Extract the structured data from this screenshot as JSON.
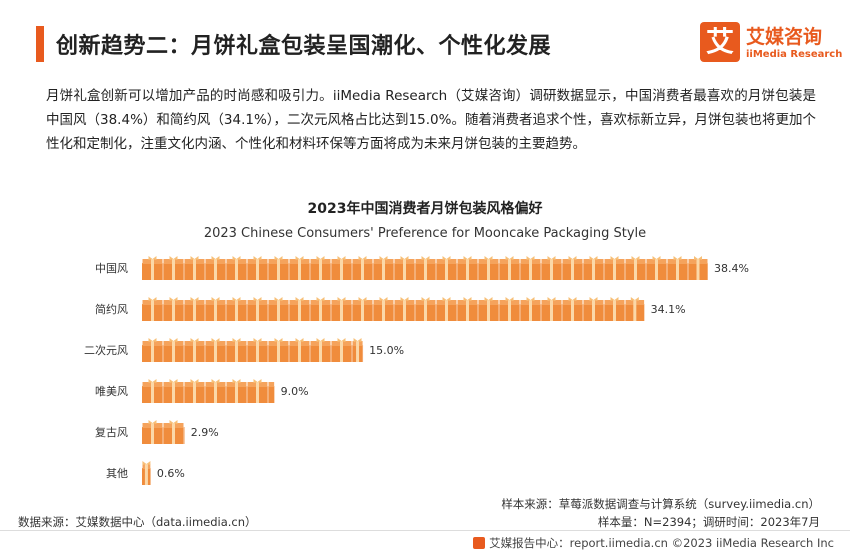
{
  "header": {
    "title": "创新趋势二：月饼礼盒包装呈国潮化、个性化发展",
    "accent_color": "#e85a1e"
  },
  "logo": {
    "mark": "艾",
    "name_cn": "艾媒咨询",
    "name_en": "iiMedia Research"
  },
  "intro_text": "月饼礼盒创新可以增加产品的时尚感和吸引力。iiMedia Research（艾媒咨询）调研数据显示，中国消费者最喜欢的月饼包装是中国风（38.4%）和简约风（34.1%），二次元风格占比达到15.0%。随着消费者追求个性，喜欢标新立异，月饼包装也将更加个性化和定制化，注重文化内涵、个性化和材料环保等方面将成为未来月饼包装的主要趋势。",
  "chart_data": {
    "type": "bar",
    "orientation": "horizontal",
    "title": "2023年中国消费者月饼包装风格偏好",
    "subtitle": "2023 Chinese Consumers' Preference for Mooncake Packaging Style",
    "categories": [
      "中国风",
      "简约风",
      "二次元风",
      "唯美风",
      "复古风",
      "其他"
    ],
    "values": [
      38.4,
      34.1,
      15.0,
      9.0,
      2.9,
      0.6
    ],
    "value_labels": [
      "38.4%",
      "34.1%",
      "15.0%",
      "9.0%",
      "2.9%",
      "0.6%"
    ],
    "unit": "%",
    "bar_color": "#f08c3c",
    "bar_style": "gift-box icons",
    "grid": false,
    "legend": "none"
  },
  "sources": {
    "sample_source": "样本来源：草莓派数据调查与计算系统（survey.iimedia.cn）",
    "sample_info": "样本量：N=2394；调研时间：2023年7月",
    "data_source": "数据来源：艾媒数据中心（data.iimedia.cn）"
  },
  "footer": {
    "text": "艾媒报告中心：report.iimedia.cn   ©2023  iiMedia Research  Inc"
  }
}
